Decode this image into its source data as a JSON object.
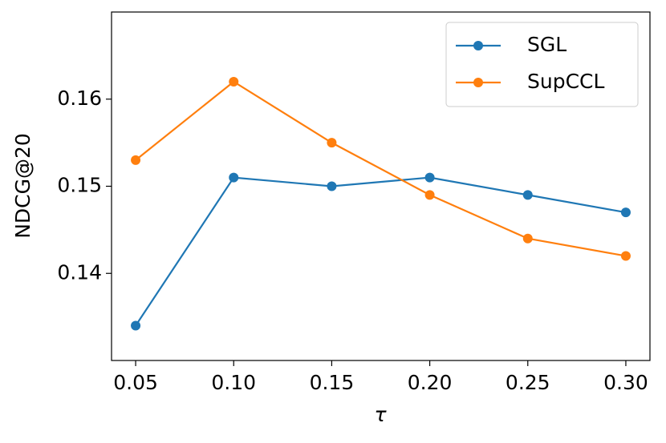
{
  "chart_data": {
    "type": "line",
    "x_label": "τ",
    "y_label": "NDCG@20",
    "x": [
      0.05,
      0.1,
      0.15,
      0.2,
      0.25,
      0.3
    ],
    "series": [
      {
        "name": "SGL",
        "color": "#1f77b4",
        "values": [
          0.134,
          0.151,
          0.15,
          0.151,
          0.149,
          0.147
        ]
      },
      {
        "name": "SupCCL",
        "color": "#ff7f0e",
        "values": [
          0.153,
          0.162,
          0.155,
          0.149,
          0.144,
          0.142
        ]
      }
    ],
    "xlim": [
      0.0377,
      0.3123
    ],
    "xticks": [
      0.05,
      {
        "value": 0.1,
        "label": "0.10"
      },
      0.15,
      {
        "value": 0.2,
        "label": "0.20"
      },
      0.25,
      {
        "value": 0.3,
        "label": "0.30"
      }
    ],
    "ylim": [
      0.13,
      0.17
    ],
    "yticks": [
      0.14,
      0.15,
      0.16
    ],
    "grid": false,
    "legend": "upper right"
  }
}
